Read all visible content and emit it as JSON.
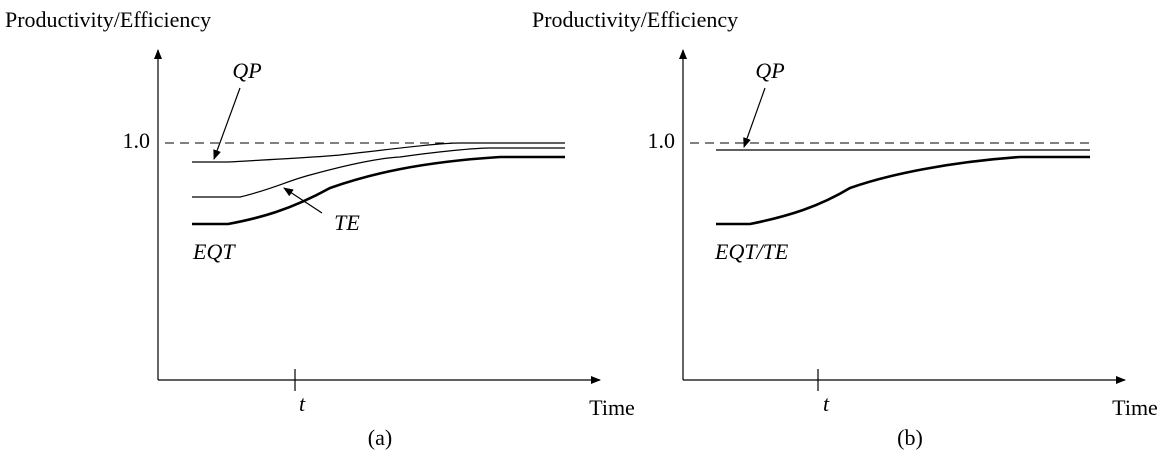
{
  "panels": [
    {
      "y_label": "Productivity/Efficiency",
      "level_label": "1.0",
      "t_label": "t",
      "x_label": "Time",
      "caption": "(a)",
      "curve_labels": [
        "QP",
        "TE",
        "EQT"
      ]
    },
    {
      "y_label": "Productivity/Efficiency",
      "level_label": "1.0",
      "t_label": "t",
      "x_label": "Time",
      "caption": "(b)",
      "curve_labels": [
        "QP",
        "EQT/TE"
      ]
    }
  ]
}
